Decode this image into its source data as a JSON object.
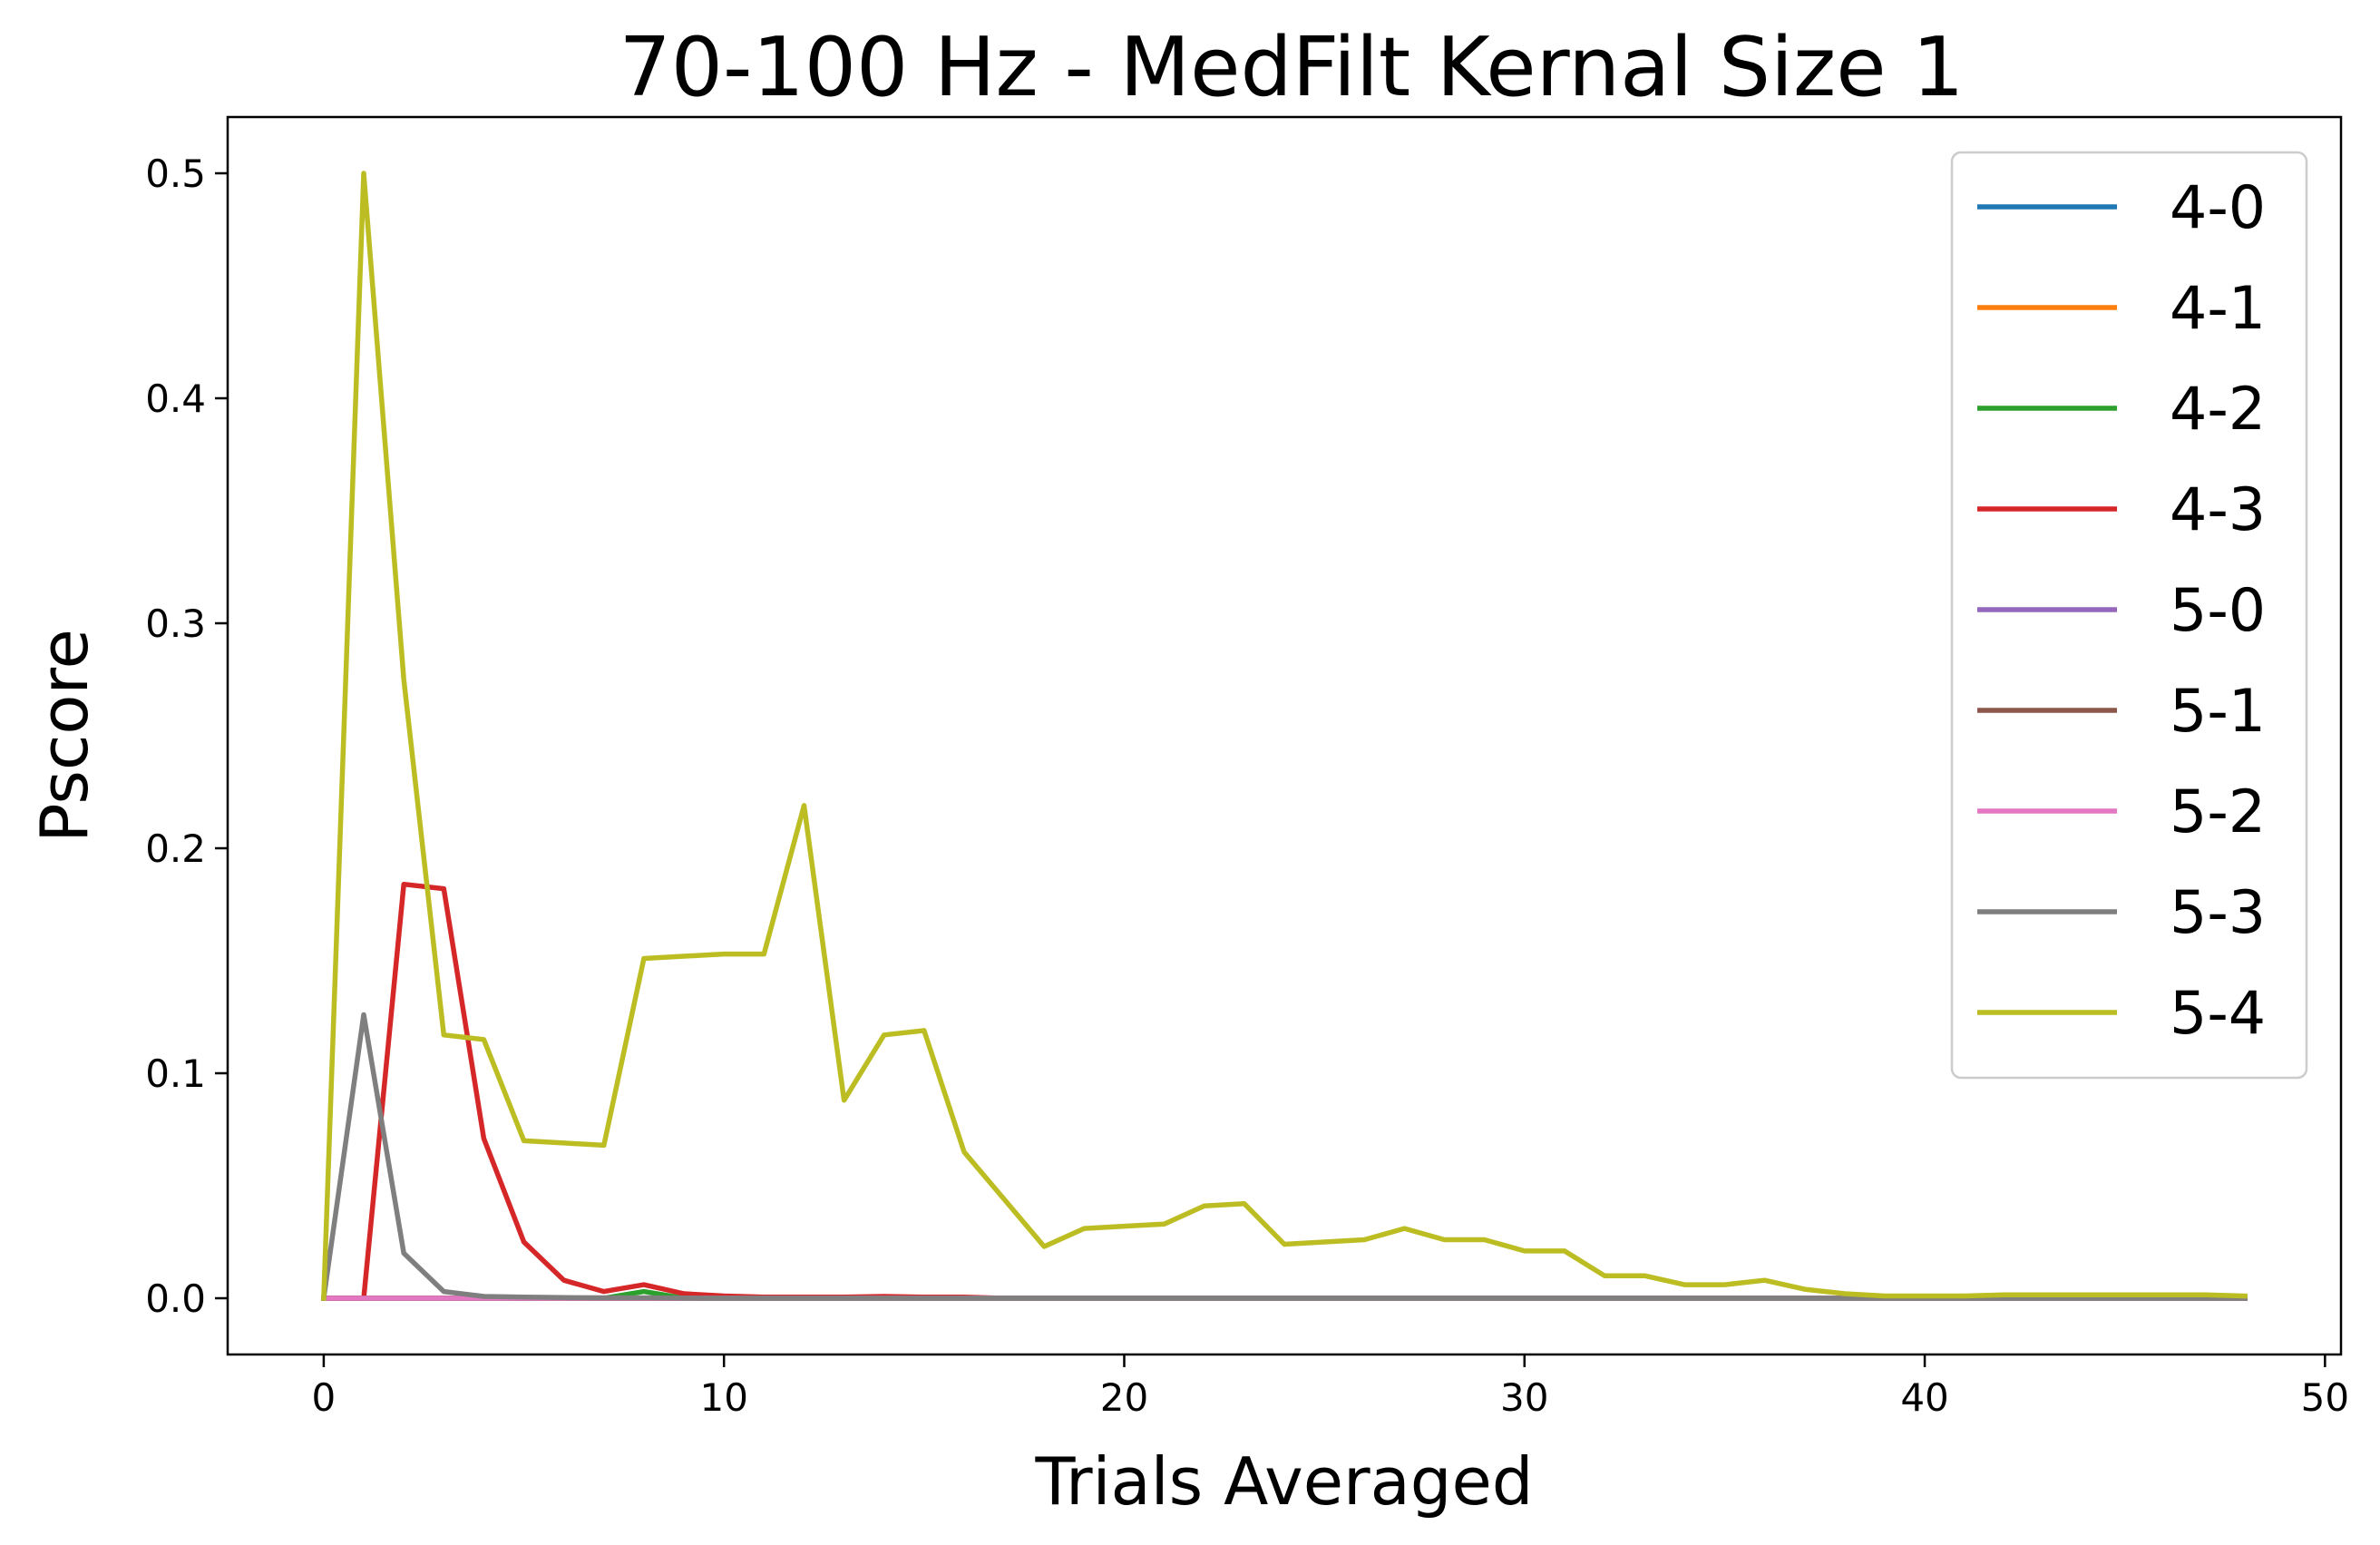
{
  "chart_data": {
    "type": "line",
    "title": "70-100 Hz - MedFilt Kernal Size 1",
    "xlabel": "Trials Averaged",
    "ylabel": "Pscore",
    "xlim": [
      -2.4,
      50.4
    ],
    "ylim": [
      -0.025,
      0.525
    ],
    "xticks": [
      0,
      10,
      20,
      30,
      40,
      50
    ],
    "yticks": [
      0.0,
      0.1,
      0.2,
      0.3,
      0.4,
      0.5
    ],
    "xtick_labels": [
      "0",
      "10",
      "20",
      "30",
      "40",
      "50"
    ],
    "ytick_labels": [
      "0.0",
      "0.1",
      "0.2",
      "0.3",
      "0.4",
      "0.5"
    ],
    "grid": false,
    "legend_position": "top-right",
    "x": [
      0,
      1,
      2,
      3,
      4,
      5,
      6,
      7,
      8,
      9,
      10,
      11,
      12,
      13,
      14,
      15,
      16,
      17,
      18,
      19,
      20,
      21,
      22,
      23,
      24,
      25,
      26,
      27,
      28,
      29,
      30,
      31,
      32,
      33,
      34,
      35,
      36,
      37,
      38,
      39,
      40,
      41,
      42,
      43,
      44,
      45,
      46,
      47,
      48
    ],
    "series": [
      {
        "name": "4-0",
        "color": "#1f77b4",
        "values": [
          0,
          0,
          0,
          0,
          0,
          0,
          0,
          0,
          0,
          0,
          0,
          0,
          0,
          0,
          0,
          0,
          0,
          0,
          0,
          0,
          0,
          0,
          0,
          0,
          0,
          0,
          0,
          0,
          0,
          0,
          0,
          0,
          0,
          0,
          0,
          0,
          0,
          0,
          0,
          0,
          0,
          0,
          0,
          0,
          0,
          0,
          0,
          0,
          0
        ]
      },
      {
        "name": "4-1",
        "color": "#ff7f0e",
        "values": [
          0,
          0,
          0,
          0,
          0,
          0,
          0,
          0,
          0,
          0,
          0,
          0,
          0,
          0,
          0,
          0,
          0,
          0,
          0,
          0,
          0,
          0,
          0,
          0,
          0,
          0,
          0,
          0,
          0,
          0,
          0,
          0,
          0,
          0,
          0,
          0,
          0,
          0,
          0,
          0,
          0,
          0,
          0,
          0,
          0,
          0,
          0,
          0,
          0
        ]
      },
      {
        "name": "4-2",
        "color": "#2ca02c",
        "values": [
          0,
          0,
          0,
          0,
          0,
          0,
          0,
          0,
          0.003,
          0,
          0,
          0,
          0,
          0,
          0,
          0,
          0,
          0,
          0,
          0,
          0,
          0,
          0,
          0,
          0,
          0,
          0,
          0,
          0,
          0,
          0,
          0,
          0,
          0,
          0,
          0,
          0,
          0,
          0,
          0,
          0,
          0,
          0,
          0,
          0,
          0,
          0,
          0,
          0
        ]
      },
      {
        "name": "4-3",
        "color": "#d62728",
        "values": [
          0,
          0,
          0.184,
          0.182,
          0.071,
          0.025,
          0.008,
          0.003,
          0.006,
          0.002,
          0.001,
          0.0005,
          0.0005,
          0.0005,
          0.0008,
          0.0005,
          0.0005,
          0,
          0,
          0,
          0,
          0,
          0,
          0,
          0,
          0,
          0,
          0,
          0,
          0,
          0,
          0,
          0,
          0,
          0,
          0,
          0,
          0,
          0,
          0,
          0,
          0,
          0,
          0,
          0,
          0,
          0,
          0,
          0
        ]
      },
      {
        "name": "5-0",
        "color": "#9467bd",
        "values": [
          0,
          0,
          0,
          0,
          0,
          0,
          0,
          0,
          0,
          0,
          0,
          0,
          0,
          0,
          0,
          0,
          0,
          0,
          0,
          0,
          0,
          0,
          0,
          0,
          0,
          0,
          0,
          0,
          0,
          0,
          0,
          0,
          0,
          0,
          0,
          0,
          0,
          0,
          0,
          0,
          0,
          0,
          0,
          0,
          0,
          0,
          0,
          0,
          0
        ]
      },
      {
        "name": "5-1",
        "color": "#8c564b",
        "values": [
          0,
          0,
          0,
          0,
          0,
          0,
          0,
          0,
          0,
          0,
          0,
          0,
          0,
          0,
          0,
          0,
          0,
          0,
          0,
          0,
          0,
          0,
          0,
          0,
          0,
          0,
          0,
          0,
          0,
          0,
          0,
          0,
          0,
          0,
          0,
          0,
          0,
          0,
          0,
          0,
          0,
          0,
          0,
          0,
          0,
          0,
          0,
          0,
          0
        ]
      },
      {
        "name": "5-2",
        "color": "#e377c2",
        "values": [
          0,
          0,
          0,
          0,
          0,
          0,
          0,
          0,
          0,
          0,
          0,
          0,
          0,
          0,
          0,
          0,
          0,
          0,
          0,
          0,
          0,
          0,
          0,
          0,
          0,
          0,
          0,
          0,
          0,
          0,
          0,
          0,
          0,
          0,
          0,
          0,
          0,
          0,
          0,
          0,
          0,
          0,
          0,
          0,
          0,
          0,
          0,
          0,
          0
        ]
      },
      {
        "name": "5-3",
        "color": "#7f7f7f",
        "values": [
          0,
          0.126,
          0.02,
          0.003,
          0.0008,
          0.0005,
          0.0003,
          0.0002,
          0.0002,
          0.0001,
          0,
          0,
          0,
          0,
          0,
          0,
          0,
          0,
          0,
          0,
          0,
          0,
          0,
          0,
          0,
          0,
          0,
          0,
          0,
          0,
          0,
          0,
          0,
          0,
          0,
          0,
          0,
          0,
          0,
          0,
          0,
          0,
          0,
          0,
          0,
          0,
          0,
          0,
          0
        ]
      },
      {
        "name": "5-4",
        "color": "#bcbd22",
        "values": [
          0,
          0.5,
          0.275,
          0.117,
          0.115,
          0.07,
          0.069,
          0.068,
          0.151,
          0.152,
          0.153,
          0.153,
          0.219,
          0.088,
          0.117,
          0.119,
          0.065,
          0.044,
          0.023,
          0.031,
          0.032,
          0.033,
          0.041,
          0.042,
          0.024,
          0.025,
          0.026,
          0.031,
          0.026,
          0.026,
          0.021,
          0.021,
          0.01,
          0.01,
          0.006,
          0.006,
          0.008,
          0.004,
          0.002,
          0.001,
          0.001,
          0.001,
          0.0015,
          0.0015,
          0.0015,
          0.0015,
          0.0015,
          0.0015,
          0.001
        ]
      }
    ]
  }
}
